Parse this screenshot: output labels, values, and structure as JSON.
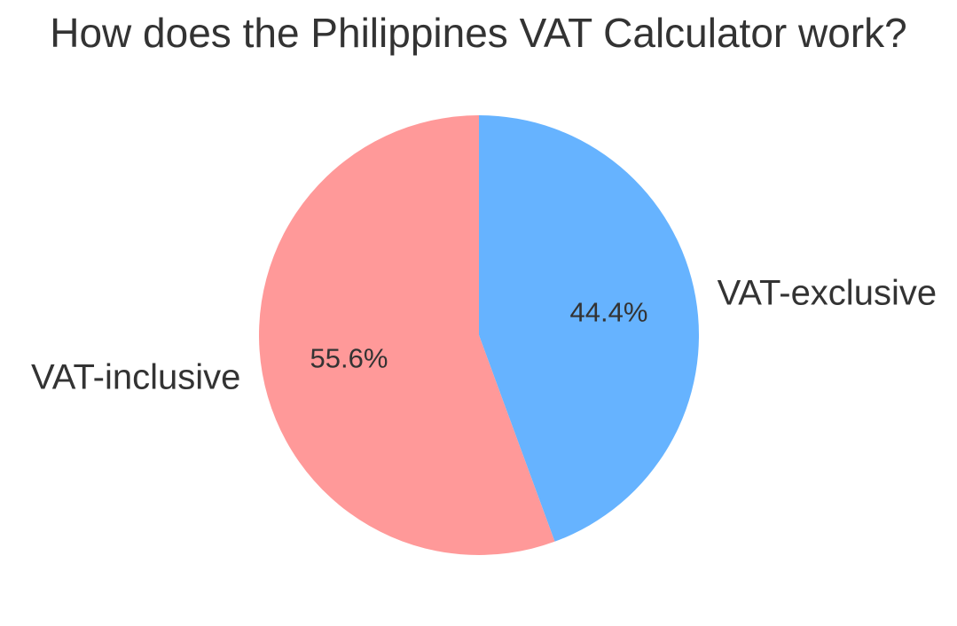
{
  "chart_data": {
    "type": "pie",
    "title": "How does the Philippines VAT Calculator work?",
    "slices": [
      {
        "label": "VAT-exclusive",
        "value": 44.4,
        "pct_label": "44.4%",
        "color": "#66b3ff"
      },
      {
        "label": "VAT-inclusive",
        "value": 55.6,
        "pct_label": "55.6%",
        "color": "#ff9999"
      }
    ],
    "start_angle_deg": 90,
    "direction": "clockwise",
    "legend": "none",
    "grid": false,
    "text_color": "#333333",
    "background_color": "#ffffff",
    "pct_label_radius_fraction": 0.6,
    "name_label_radius_fraction": 1.1
  }
}
